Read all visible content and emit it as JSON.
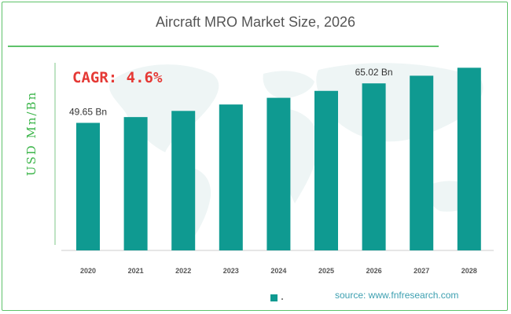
{
  "chart_data": {
    "type": "bar",
    "title": "Aircraft MRO Market Size, 2026",
    "ylabel": "USD Mn/Bn",
    "xlabel": "",
    "categories": [
      "2020",
      "2021",
      "2022",
      "2023",
      "2024",
      "2025",
      "2026",
      "2027",
      "2028"
    ],
    "values": [
      49.65,
      51.9,
      54.3,
      56.8,
      59.4,
      62.1,
      65.02,
      68.0,
      71.1
    ],
    "data_labels": {
      "2020": "49.65 Bn",
      "2026": "65.02 Bn"
    },
    "ylim": [
      0,
      77
    ],
    "grid": false,
    "annotation": "CAGR: 4.6%",
    "bar_color": "#0f9a91"
  },
  "source": "source: www.fnfresearch.com"
}
